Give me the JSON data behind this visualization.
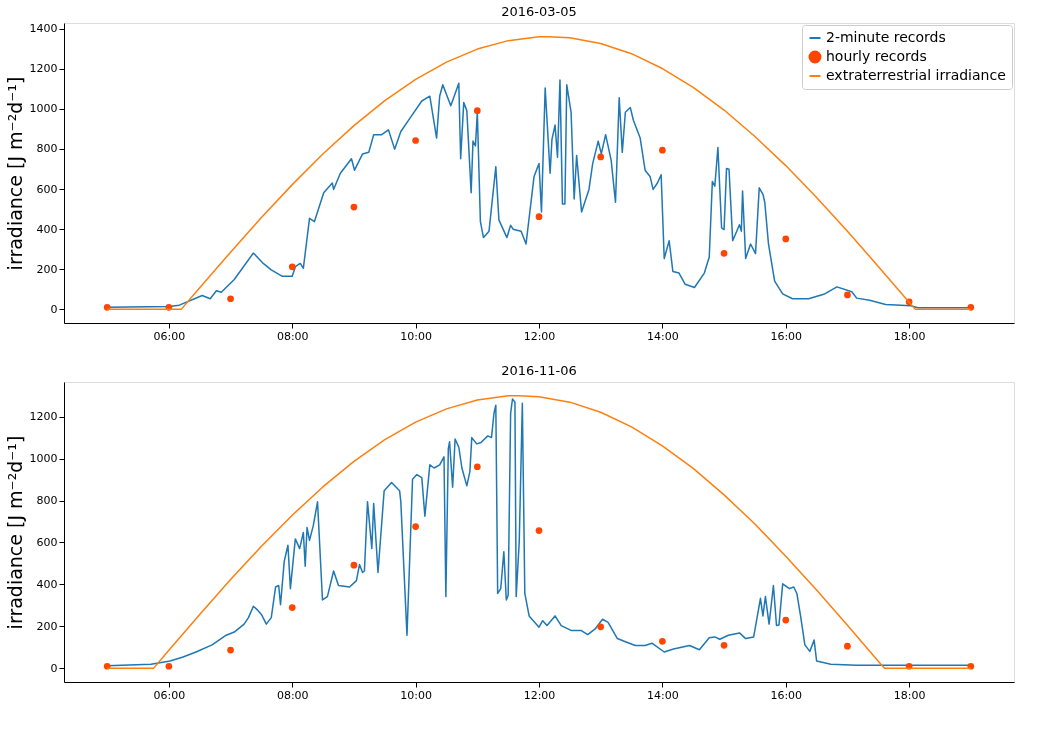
{
  "chart_data": [
    {
      "type": "line",
      "title": "2016-03-05",
      "ylabel": "irradiance  [J m⁻²d⁻¹]",
      "xlim": [
        4.3,
        19.7
      ],
      "ylim": [
        -68,
        1428
      ],
      "xticks": [
        {
          "value": 6,
          "label": "06:00"
        },
        {
          "value": 8,
          "label": "08:00"
        },
        {
          "value": 10,
          "label": "10:00"
        },
        {
          "value": 12,
          "label": "12:00"
        },
        {
          "value": 14,
          "label": "14:00"
        },
        {
          "value": 16,
          "label": "16:00"
        },
        {
          "value": 18,
          "label": "18:00"
        }
      ],
      "yticks": [
        0,
        200,
        400,
        600,
        800,
        1000,
        1200,
        1400
      ],
      "grid": false,
      "legend": "top right",
      "series": [
        {
          "name": "2-minute records",
          "color": "#1f77b4",
          "type": "line",
          "x": [
            5.0,
            6.0,
            6.17,
            6.54,
            6.67,
            6.77,
            6.85,
            7.06,
            7.37,
            7.53,
            7.66,
            7.84,
            8.0,
            8.05,
            8.13,
            8.18,
            8.28,
            8.36,
            8.51,
            8.65,
            8.67,
            8.78,
            8.96,
            9.01,
            9.14,
            9.24,
            9.32,
            9.45,
            9.56,
            9.66,
            9.76,
            9.92,
            10.1,
            10.23,
            10.34,
            10.39,
            10.44,
            10.57,
            10.7,
            10.73,
            10.78,
            10.83,
            10.9,
            10.93,
            10.97,
            11.0,
            11.05,
            11.1,
            11.19,
            11.3,
            11.35,
            11.48,
            11.54,
            11.58,
            11.71,
            11.79,
            11.92,
            12.0,
            12.04,
            12.1,
            12.18,
            12.21,
            12.26,
            12.3,
            12.34,
            12.38,
            12.42,
            12.45,
            12.52,
            12.57,
            12.61,
            12.69,
            12.81,
            12.87,
            12.96,
            13.01,
            13.08,
            13.17,
            13.24,
            13.3,
            13.35,
            13.4,
            13.48,
            13.53,
            13.64,
            13.72,
            13.8,
            13.85,
            13.92,
            13.98,
            14.03,
            14.11,
            14.17,
            14.27,
            14.37,
            14.52,
            14.68,
            14.76,
            14.81,
            14.85,
            14.9,
            14.96,
            15.0,
            15.04,
            15.08,
            15.14,
            15.25,
            15.28,
            15.3,
            15.35,
            15.43,
            15.51,
            15.57,
            15.63,
            15.66,
            15.72,
            15.82,
            15.95,
            16.11,
            16.37,
            16.63,
            16.83,
            17.07,
            17.15,
            17.36,
            17.62,
            18.03,
            18.14,
            19.0
          ],
          "values": [
            10,
            14,
            21,
            69,
            53,
            93,
            85,
            149,
            281,
            229,
            197,
            165,
            165,
            213,
            229,
            205,
            454,
            438,
            582,
            630,
            598,
            679,
            751,
            694,
            775,
            783,
            871,
            871,
            895,
            799,
            887,
            959,
            1039,
            1063,
            854,
            1063,
            1120,
            1015,
            1128,
            751,
            1031,
            991,
            582,
            839,
            815,
            983,
            438,
            358,
            390,
            711,
            446,
            358,
            419,
            400,
            390,
            326,
            663,
            727,
            486,
            1104,
            679,
            847,
            919,
            759,
            1144,
            526,
            526,
            1120,
            983,
            550,
            767,
            486,
            598,
            727,
            839,
            775,
            871,
            743,
            534,
            1055,
            783,
            983,
            1007,
            943,
            854,
            694,
            663,
            598,
            630,
            671,
            254,
            342,
            189,
            181,
            125,
            109,
            181,
            261,
            638,
            614,
            807,
            406,
            398,
            703,
            699,
            342,
            422,
            390,
            590,
            254,
            326,
            278,
            606,
            574,
            534,
            326,
            141,
            77,
            53,
            53,
            77,
            112,
            88,
            56,
            45,
            24,
            18,
            8,
            8
          ]
        },
        {
          "name": "hourly records",
          "color": "#ff4500",
          "type": "scatter",
          "marker": "circle",
          "x": [
            5,
            6,
            7,
            8,
            9,
            10,
            11,
            12,
            13,
            14,
            15,
            16,
            17,
            18,
            19
          ],
          "values": [
            10,
            10,
            53,
            212,
            510,
            842,
            991,
            462,
            760,
            794,
            279,
            351,
            72,
            38,
            10
          ]
        },
        {
          "name": "extraterrestrial irradiance",
          "color": "#ff7f0e",
          "type": "line",
          "x": [
            5,
            6.2,
            6.5,
            7,
            7.5,
            8,
            8.5,
            9,
            9.5,
            10,
            10.5,
            11,
            11.5,
            12,
            12.15,
            12.5,
            13,
            13.5,
            14,
            14.5,
            15,
            15.5,
            16,
            16.5,
            17,
            17.5,
            18,
            18.1,
            19
          ],
          "values": [
            0,
            0,
            108,
            285,
            458,
            622,
            776,
            916,
            1041,
            1147,
            1233,
            1298,
            1340,
            1359,
            1360,
            1354,
            1326,
            1275,
            1201,
            1107,
            994,
            862,
            717,
            558,
            390,
            214,
            36,
            0,
            0
          ]
        }
      ]
    },
    {
      "type": "line",
      "title": "2016-11-06",
      "ylabel": "irradiance  [J m⁻²d⁻¹]",
      "xlim": [
        4.3,
        19.7
      ],
      "ylim": [
        -65,
        1365
      ],
      "xticks": [
        {
          "value": 6,
          "label": "06:00"
        },
        {
          "value": 8,
          "label": "08:00"
        },
        {
          "value": 10,
          "label": "10:00"
        },
        {
          "value": 12,
          "label": "12:00"
        },
        {
          "value": 14,
          "label": "14:00"
        },
        {
          "value": 16,
          "label": "16:00"
        },
        {
          "value": 18,
          "label": "18:00"
        }
      ],
      "yticks": [
        0,
        200,
        400,
        600,
        800,
        1000,
        1200
      ],
      "grid": false,
      "legend": "top right",
      "series": [
        {
          "name": "2-minute records",
          "color": "#1f77b4",
          "type": "line",
          "x": [
            5.0,
            5.71,
            6.02,
            6.23,
            6.44,
            6.7,
            6.93,
            7.06,
            7.22,
            7.29,
            7.37,
            7.43,
            7.5,
            7.58,
            7.66,
            7.73,
            7.78,
            7.81,
            7.87,
            7.93,
            7.97,
            8.05,
            8.12,
            8.18,
            8.21,
            8.24,
            8.28,
            8.34,
            8.41,
            8.49,
            8.57,
            8.67,
            8.75,
            8.93,
            9.04,
            9.09,
            9.14,
            9.17,
            9.22,
            9.29,
            9.32,
            9.39,
            9.49,
            9.61,
            9.74,
            9.76,
            9.86,
            9.95,
            10.02,
            10.1,
            10.15,
            10.23,
            10.3,
            10.39,
            10.46,
            10.49,
            10.53,
            10.55,
            10.6,
            10.64,
            10.7,
            10.75,
            10.83,
            10.88,
            10.91,
            10.99,
            11.06,
            11.17,
            11.23,
            11.27,
            11.3,
            11.33,
            11.38,
            11.43,
            11.47,
            11.5,
            11.54,
            11.57,
            11.61,
            11.63,
            11.68,
            11.73,
            11.77,
            11.84,
            12.0,
            12.06,
            12.13,
            12.26,
            12.36,
            12.52,
            12.68,
            12.79,
            12.91,
            13.03,
            13.12,
            13.27,
            13.4,
            13.56,
            13.72,
            13.83,
            14.03,
            14.18,
            14.44,
            14.6,
            14.76,
            14.85,
            14.93,
            15.07,
            15.25,
            15.35,
            15.48,
            15.59,
            15.63,
            15.67,
            15.73,
            15.8,
            15.85,
            15.89,
            15.95,
            16.06,
            16.13,
            16.18,
            16.24,
            16.31,
            16.39,
            16.46,
            16.5,
            16.73,
            17.15,
            17.62,
            19.0
          ],
          "values": [
            12,
            20,
            35,
            54,
            78,
            112,
            158,
            173,
            211,
            242,
            296,
            280,
            257,
            211,
            242,
            388,
            395,
            303,
            510,
            587,
            380,
            617,
            571,
            648,
            487,
            671,
            610,
            679,
            794,
            326,
            342,
            464,
            395,
            388,
            418,
            495,
            457,
            464,
            794,
            571,
            786,
            457,
            847,
            886,
            847,
            794,
            158,
            901,
            924,
            909,
            725,
            970,
            955,
            970,
            1008,
            342,
            1047,
            1080,
            863,
            1093,
            1054,
            955,
            870,
            939,
            1100,
            1070,
            1077,
            1108,
            1100,
            1215,
            1254,
            357,
            380,
            556,
            326,
            349,
            1215,
            1284,
            1269,
            342,
            606,
            1264,
            357,
            250,
            196,
            227,
            204,
            250,
            204,
            181,
            181,
            161,
            188,
            234,
            219,
            142,
            127,
            109,
            109,
            120,
            78,
            92,
            109,
            89,
            146,
            150,
            139,
            158,
            169,
            142,
            150,
            334,
            250,
            342,
            211,
            395,
            204,
            207,
            403,
            380,
            388,
            357,
            250,
            112,
            81,
            135,
            35,
            20,
            15,
            15,
            15
          ]
        },
        {
          "name": "hourly records",
          "color": "#ff4500",
          "type": "scatter",
          "marker": "circle",
          "x": [
            5,
            6,
            7,
            8,
            9,
            10,
            11,
            12,
            13,
            14,
            15,
            16,
            17,
            18,
            19
          ],
          "values": [
            10,
            10,
            87,
            290,
            492,
            676,
            961,
            657,
            198,
            129,
            110,
            230,
            106,
            10,
            10
          ]
        },
        {
          "name": "extraterrestrial irradiance",
          "color": "#ff7f0e",
          "type": "line",
          "x": [
            5,
            5.75,
            6,
            6.5,
            7,
            7.5,
            8,
            8.5,
            9,
            9.5,
            10,
            10.5,
            11,
            11.5,
            11.675,
            12,
            12.5,
            13,
            13.5,
            14,
            14.5,
            15,
            15.5,
            16,
            16.5,
            17,
            17.5,
            17.6,
            19
          ],
          "values": [
            0,
            0,
            86,
            257,
            423,
            582,
            730,
            866,
            987,
            1090,
            1174,
            1237,
            1279,
            1299,
            1300,
            1295,
            1269,
            1221,
            1151,
            1061,
            953,
            827,
            688,
            534,
            373,
            206,
            34,
            0,
            0
          ]
        }
      ]
    }
  ]
}
